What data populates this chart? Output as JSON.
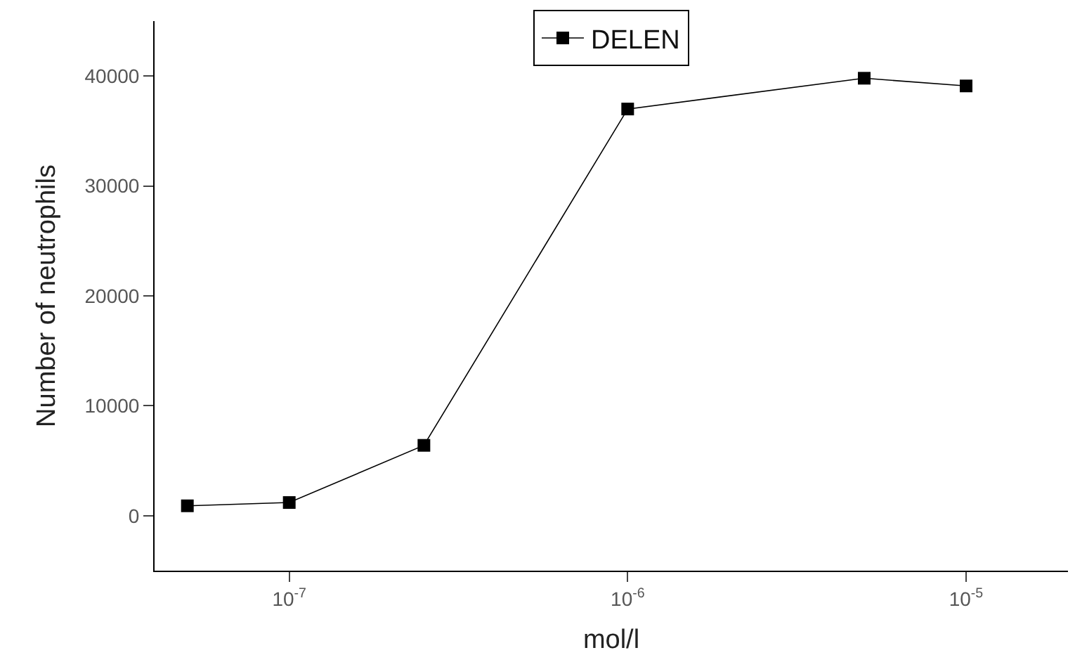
{
  "chart_data": {
    "type": "line",
    "xlabel": "mol/l",
    "ylabel": "Number of neutrophils",
    "x": [
      5e-08,
      1e-07,
      2.5e-07,
      1e-06,
      5e-06,
      1e-05
    ],
    "series": [
      {
        "name": "DELEN",
        "color": "#000000",
        "values": [
          900,
          1200,
          6400,
          37000,
          39800,
          39100
        ]
      }
    ],
    "log": "x",
    "xlim": [
      4e-08,
      2e-05
    ],
    "ylim": [
      -5000,
      45000
    ],
    "xticks": [
      {
        "value": 1e-07,
        "label": "10$^{-7}$"
      },
      {
        "value": 1e-06,
        "label": "10$^{-6}$"
      },
      {
        "value": 1e-05,
        "label": "10$^{-5}$"
      }
    ],
    "yticks": [
      0,
      10000,
      20000,
      30000,
      40000
    ],
    "legend": "top",
    "marker": "square",
    "line_style": "solid"
  }
}
